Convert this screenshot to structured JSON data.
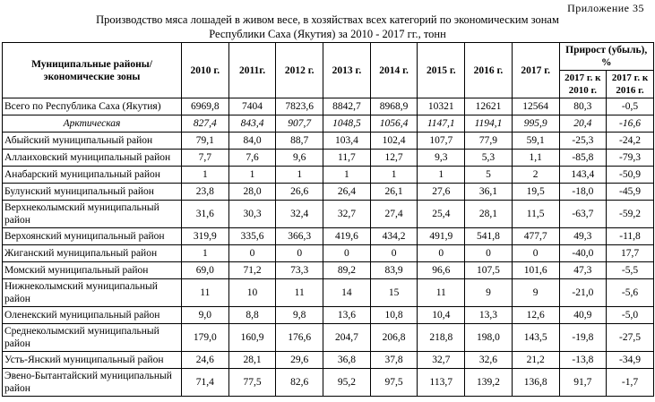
{
  "page": {
    "appendix_label": "Приложение 35",
    "title_line1": "Производство мяса лошадей в живом весе, в хозяйствах всех категорий по экономическим зонам",
    "title_line2": "Республики Саха (Якутия) за 2010 - 2017 гг., тонн"
  },
  "table": {
    "header": {
      "label": "Муниципальные районы/ экономические зоны",
      "years": [
        "2010 г.",
        "2011г.",
        "2012 г.",
        "2013 г.",
        "2014 г.",
        "2015 г.",
        "2016 г.",
        "2017 г."
      ],
      "growth": "Прирост (убыль), %",
      "growth_sub": [
        "2017 г. к 2010 г.",
        "2017 г. к 2016 г."
      ]
    },
    "rows": [
      {
        "style": "total",
        "label": "Всего по Республика Саха (Якутия)",
        "values": [
          "6969,8",
          "7404",
          "7823,6",
          "8842,7",
          "8968,9",
          "10321",
          "12621",
          "12564",
          "80,3",
          "-0,5"
        ]
      },
      {
        "style": "zone",
        "label": "Арктическая",
        "values": [
          "827,4",
          "843,4",
          "907,7",
          "1048,5",
          "1056,4",
          "1147,1",
          "1194,1",
          "995,9",
          "20,4",
          "-16,6"
        ]
      },
      {
        "style": "district",
        "label": "Абыйский муниципальный район",
        "values": [
          "79,1",
          "84,0",
          "88,7",
          "103,4",
          "102,4",
          "107,7",
          "77,9",
          "59,1",
          "-25,3",
          "-24,2"
        ]
      },
      {
        "style": "district",
        "label": "Аллаиховский муниципальный район",
        "values": [
          "7,7",
          "7,6",
          "9,6",
          "11,7",
          "12,7",
          "9,3",
          "5,3",
          "1,1",
          "-85,8",
          "-79,3"
        ]
      },
      {
        "style": "district",
        "label": "Анабарский муниципальный район",
        "values": [
          "1",
          "1",
          "1",
          "1",
          "1",
          "1",
          "5",
          "2",
          "143,4",
          "-50,9"
        ]
      },
      {
        "style": "district",
        "label": "Булунский муниципальный район",
        "values": [
          "23,8",
          "28,0",
          "26,6",
          "26,4",
          "26,1",
          "27,6",
          "36,1",
          "19,5",
          "-18,0",
          "-45,9"
        ]
      },
      {
        "style": "district",
        "label": "Верхнеколымский муниципальный район",
        "values": [
          "31,6",
          "30,3",
          "32,4",
          "32,7",
          "27,4",
          "25,4",
          "28,1",
          "11,5",
          "-63,7",
          "-59,2"
        ]
      },
      {
        "style": "district",
        "label": "Верхоянский муниципальный район",
        "values": [
          "319,9",
          "335,6",
          "366,3",
          "419,6",
          "434,2",
          "491,9",
          "541,8",
          "477,7",
          "49,3",
          "-11,8"
        ]
      },
      {
        "style": "district",
        "label": "Жиганский муниципальный район",
        "values": [
          "1",
          "0",
          "0",
          "0",
          "0",
          "0",
          "0",
          "0",
          "-40,0",
          "17,7"
        ]
      },
      {
        "style": "district",
        "label": "Момский муниципальный район",
        "values": [
          "69,0",
          "71,2",
          "73,3",
          "89,2",
          "83,9",
          "96,6",
          "107,5",
          "101,6",
          "47,3",
          "-5,5"
        ]
      },
      {
        "style": "district",
        "label": "Нижнеколымский муниципальный район",
        "values": [
          "11",
          "10",
          "11",
          "14",
          "15",
          "11",
          "9",
          "9",
          "-21,0",
          "-5,6"
        ]
      },
      {
        "style": "district",
        "label": "Оленекский муниципальный район",
        "values": [
          "9,0",
          "8,8",
          "9,8",
          "13,6",
          "10,8",
          "10,4",
          "13,3",
          "12,6",
          "40,9",
          "-5,0"
        ]
      },
      {
        "style": "district",
        "label": "Среднеколымский муниципальный район",
        "values": [
          "179,0",
          "160,9",
          "176,6",
          "204,7",
          "206,8",
          "218,8",
          "198,0",
          "143,5",
          "-19,8",
          "-27,5"
        ]
      },
      {
        "style": "district",
        "label": "Усть-Янский муниципальный район",
        "values": [
          "24,6",
          "28,1",
          "29,6",
          "36,8",
          "37,8",
          "32,7",
          "32,6",
          "21,2",
          "-13,8",
          "-34,9"
        ]
      },
      {
        "style": "district",
        "label": "Эвено-Бытантайский муниципальный район",
        "values": [
          "71,4",
          "77,5",
          "82,6",
          "95,2",
          "97,5",
          "113,7",
          "139,2",
          "136,8",
          "91,7",
          "-1,7"
        ]
      }
    ]
  }
}
